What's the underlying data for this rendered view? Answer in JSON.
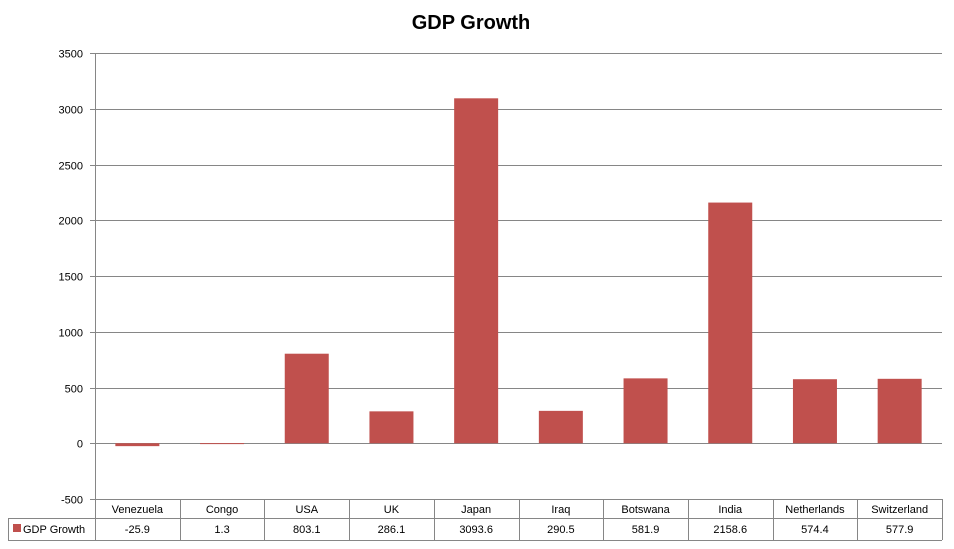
{
  "chart_data": {
    "type": "bar",
    "title": "GDP Growth",
    "categories": [
      "Venezuela",
      "Congo",
      "USA",
      "UK",
      "Japan",
      "Iraq",
      "Botswana",
      "India",
      "Netherlands",
      "Switzerland"
    ],
    "series": [
      {
        "name": "GDP Growth",
        "values": [
          -25.9,
          1.3,
          803.1,
          286.1,
          3093.6,
          290.5,
          581.9,
          2158.6,
          574.4,
          577.9
        ],
        "color": "#C0504D"
      }
    ],
    "value_labels": [
      "-25.9",
      "1.3",
      "803.1",
      "286.1",
      "3093.6",
      "290.5",
      "581.9",
      "2158.6",
      "574.4",
      "577.9"
    ],
    "ylim": [
      -500,
      3500
    ],
    "yticks": [
      "-500",
      "0",
      "500",
      "1000",
      "1500",
      "2000",
      "2500",
      "3000",
      "3500"
    ],
    "grid": true,
    "legend": "data-table",
    "xlabel": "",
    "ylabel": ""
  }
}
